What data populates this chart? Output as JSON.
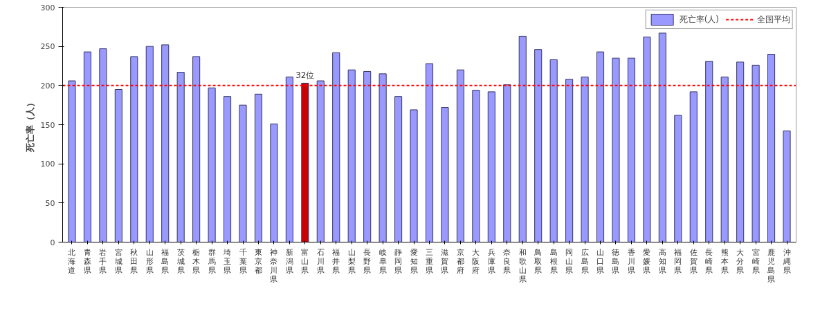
{
  "chart_data": {
    "type": "bar",
    "ylabel": "死亡率（人）",
    "categories": [
      "北海道",
      "青森県",
      "岩手県",
      "宮城県",
      "秋田県",
      "山形県",
      "福島県",
      "茨城県",
      "栃木県",
      "群馬県",
      "埼玉県",
      "千葉県",
      "東京都",
      "神奈川県",
      "新潟県",
      "富山県",
      "石川県",
      "福井県",
      "山梨県",
      "長野県",
      "岐阜県",
      "静岡県",
      "愛知県",
      "三重県",
      "滋賀県",
      "京都府",
      "大阪府",
      "兵庫県",
      "奈良県",
      "和歌山県",
      "鳥取県",
      "島根県",
      "岡山県",
      "広島県",
      "山口県",
      "徳島県",
      "香川県",
      "愛媛県",
      "高知県",
      "福岡県",
      "佐賀県",
      "長崎県",
      "熊本県",
      "大分県",
      "宮崎県",
      "鹿児島県",
      "沖縄県"
    ],
    "series": [
      {
        "name": "死亡率(人)",
        "color": "#9999ff",
        "colors": [
          null,
          null,
          null,
          null,
          null,
          null,
          null,
          null,
          null,
          null,
          null,
          null,
          null,
          null,
          null,
          "#cc0000",
          null,
          null,
          null,
          null,
          null,
          null,
          null,
          null,
          null,
          null,
          null,
          null,
          null,
          null,
          null,
          null,
          null,
          null,
          null,
          null,
          null,
          null,
          null,
          null,
          null,
          null,
          null,
          null,
          null,
          null,
          null
        ],
        "values": [
          206,
          243,
          247,
          195,
          237,
          250,
          252,
          217,
          237,
          197,
          186,
          175,
          189,
          151,
          211,
          203,
          206,
          242,
          220,
          218,
          215,
          186,
          169,
          228,
          172,
          220,
          194,
          192,
          201,
          263,
          246,
          233,
          208,
          211,
          243,
          235,
          235,
          262,
          267,
          162,
          192,
          231,
          211,
          230,
          226,
          240,
          142
        ]
      }
    ],
    "ref_lines": [
      {
        "axis": "y",
        "value": 200,
        "label": "全国平均",
        "color": "#ff0000",
        "line_style": "dashed"
      }
    ],
    "annotations": [
      {
        "text": "32位",
        "x": "富山県",
        "y": 203
      }
    ],
    "ylim": [
      0,
      300
    ],
    "yticks": [
      0,
      50,
      100,
      150,
      200,
      250,
      300
    ],
    "grid": false,
    "legend": "top right"
  }
}
